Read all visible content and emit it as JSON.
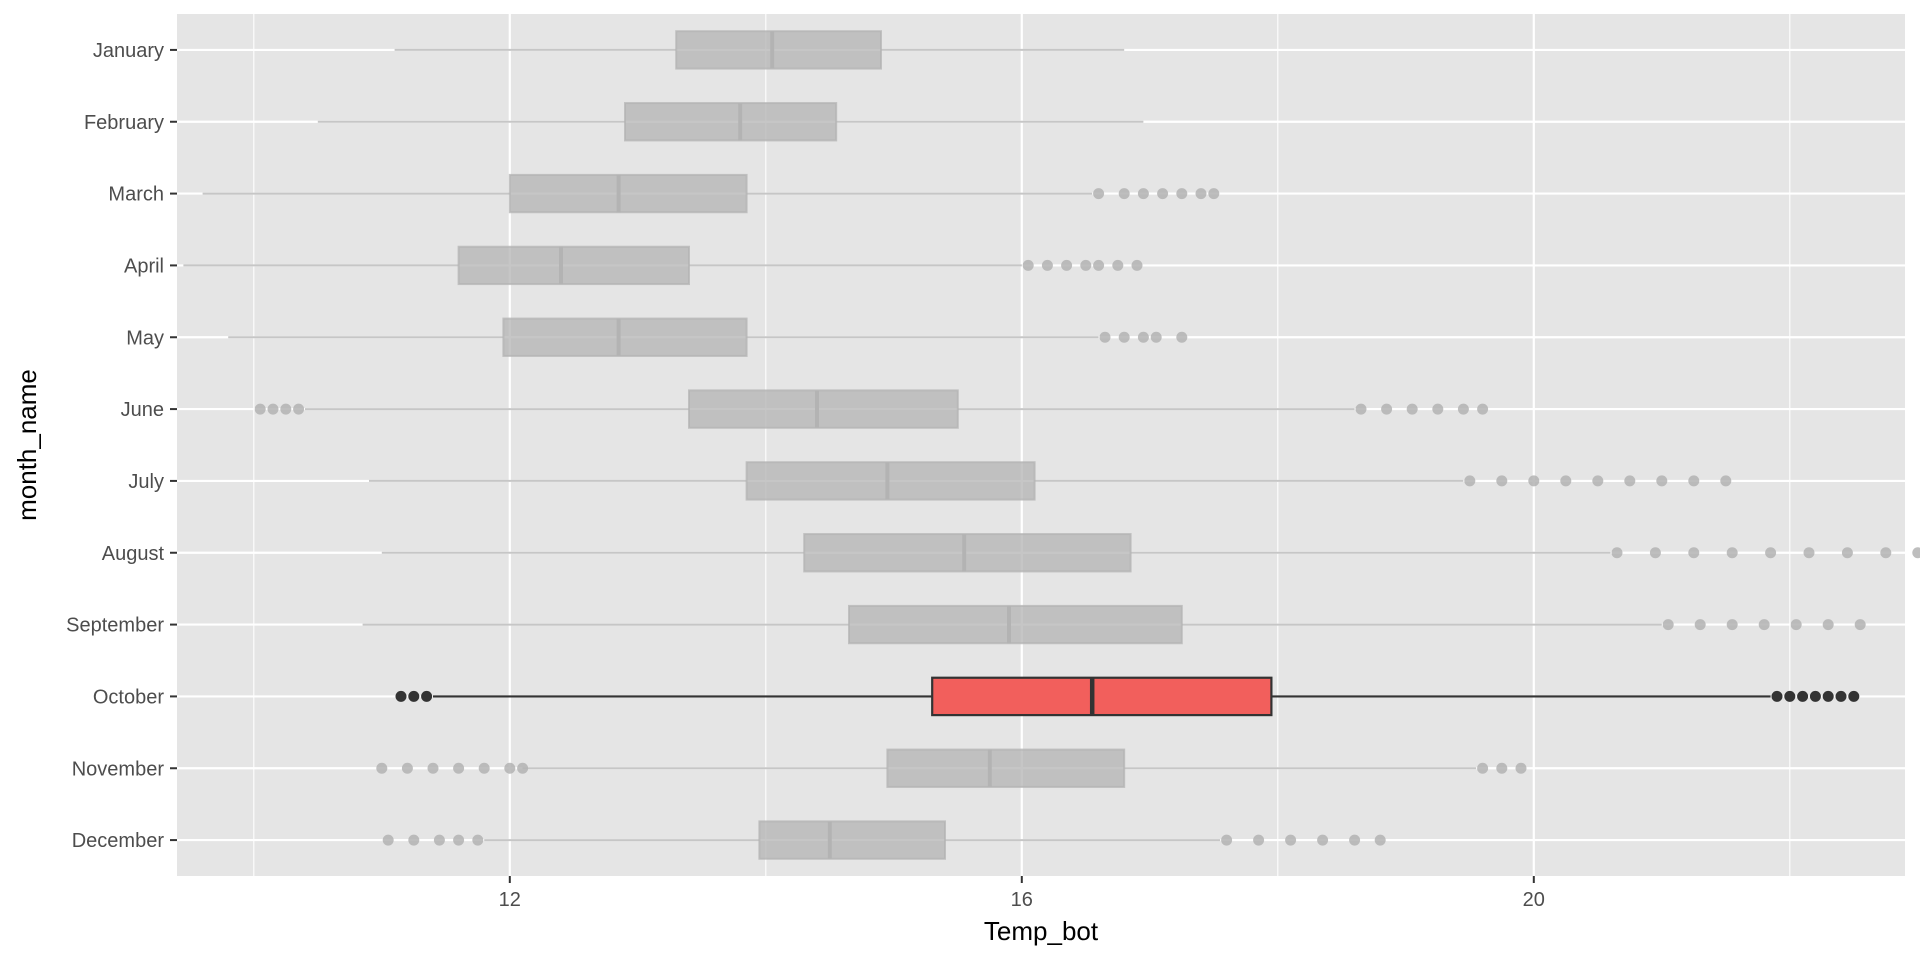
{
  "chart_data": {
    "type": "boxplot",
    "orientation": "horizontal",
    "xlabel": "Temp_bot",
    "ylabel": "month_name",
    "xlim": [
      9.4,
      22.9
    ],
    "x_ticks": [
      12,
      16,
      20
    ],
    "grid": true,
    "highlight_category": "October",
    "colors": {
      "panel_bg": "#e5e5e5",
      "grid": "#ffffff",
      "muted": "#b3b3b3",
      "highlight_fill": "#f25f5c",
      "highlight_line": "#333333",
      "tick_text": "#4d4d4d"
    },
    "categories": [
      "January",
      "February",
      "March",
      "April",
      "May",
      "June",
      "July",
      "August",
      "September",
      "October",
      "November",
      "December"
    ],
    "boxes": [
      {
        "month": "January",
        "whisker_low": 11.1,
        "q1": 13.3,
        "median": 14.05,
        "q3": 14.9,
        "whisker_high": 16.8,
        "outliers_low": [],
        "outliers_high": []
      },
      {
        "month": "February",
        "whisker_low": 10.5,
        "q1": 12.9,
        "median": 13.8,
        "q3": 14.55,
        "whisker_high": 16.95,
        "outliers_low": [],
        "outliers_high": []
      },
      {
        "month": "March",
        "whisker_low": 9.6,
        "q1": 12.0,
        "median": 12.85,
        "q3": 13.85,
        "whisker_high": 16.55,
        "outliers_low": [],
        "outliers_high": [
          16.6,
          16.8,
          16.95,
          17.1,
          17.25,
          17.4,
          17.5
        ]
      },
      {
        "month": "April",
        "whisker_low": 9.45,
        "q1": 11.6,
        "median": 12.4,
        "q3": 13.4,
        "whisker_high": 16.0,
        "outliers_low": [],
        "outliers_high": [
          16.05,
          16.2,
          16.35,
          16.5,
          16.6,
          16.75,
          16.9
        ]
      },
      {
        "month": "May",
        "whisker_low": 9.8,
        "q1": 11.95,
        "median": 12.85,
        "q3": 13.85,
        "whisker_high": 16.6,
        "outliers_low": [],
        "outliers_high": [
          16.65,
          16.8,
          16.95,
          17.05,
          17.25
        ]
      },
      {
        "month": "June",
        "whisker_low": 10.4,
        "q1": 13.4,
        "median": 14.4,
        "q3": 15.5,
        "whisker_high": 18.6,
        "outliers_low": [
          10.05,
          10.15,
          10.25,
          10.35
        ],
        "outliers_high": [
          18.65,
          18.85,
          19.05,
          19.25,
          19.45,
          19.6
        ]
      },
      {
        "month": "July",
        "whisker_low": 10.9,
        "q1": 13.85,
        "median": 14.95,
        "q3": 16.1,
        "whisker_high": 19.45,
        "outliers_low": [],
        "outliers_high": [
          19.5,
          19.75,
          20.0,
          20.25,
          20.5,
          20.75,
          21.0,
          21.25,
          21.5
        ]
      },
      {
        "month": "August",
        "whisker_low": 11.0,
        "q1": 14.3,
        "median": 15.55,
        "q3": 16.85,
        "whisker_high": 20.6,
        "outliers_low": [],
        "outliers_high": [
          20.65,
          20.95,
          21.25,
          21.55,
          21.85,
          22.15,
          22.45,
          22.75,
          23.0
        ]
      },
      {
        "month": "September",
        "whisker_low": 10.85,
        "q1": 14.65,
        "median": 15.9,
        "q3": 17.25,
        "whisker_high": 21.0,
        "outliers_low": [],
        "outliers_high": [
          21.05,
          21.3,
          21.55,
          21.8,
          22.05,
          22.3,
          22.55
        ]
      },
      {
        "month": "October",
        "whisker_low": 11.4,
        "q1": 15.3,
        "median": 16.55,
        "q3": 17.95,
        "whisker_high": 21.85,
        "outliers_low": [
          11.15,
          11.25,
          11.35
        ],
        "outliers_high": [
          21.9,
          22.0,
          22.1,
          22.2,
          22.3,
          22.4,
          22.5
        ]
      },
      {
        "month": "November",
        "whisker_low": 12.1,
        "q1": 14.95,
        "median": 15.75,
        "q3": 16.8,
        "whisker_high": 19.55,
        "outliers_low": [
          11.0,
          11.2,
          11.4,
          11.6,
          11.8,
          12.0,
          12.1
        ],
        "outliers_high": [
          19.6,
          19.75,
          19.9
        ]
      },
      {
        "month": "December",
        "whisker_low": 11.8,
        "q1": 13.95,
        "median": 14.5,
        "q3": 15.4,
        "whisker_high": 17.55,
        "outliers_low": [
          11.05,
          11.25,
          11.45,
          11.6,
          11.75
        ],
        "outliers_high": [
          17.6,
          17.85,
          18.1,
          18.35,
          18.6,
          18.8
        ]
      }
    ]
  }
}
